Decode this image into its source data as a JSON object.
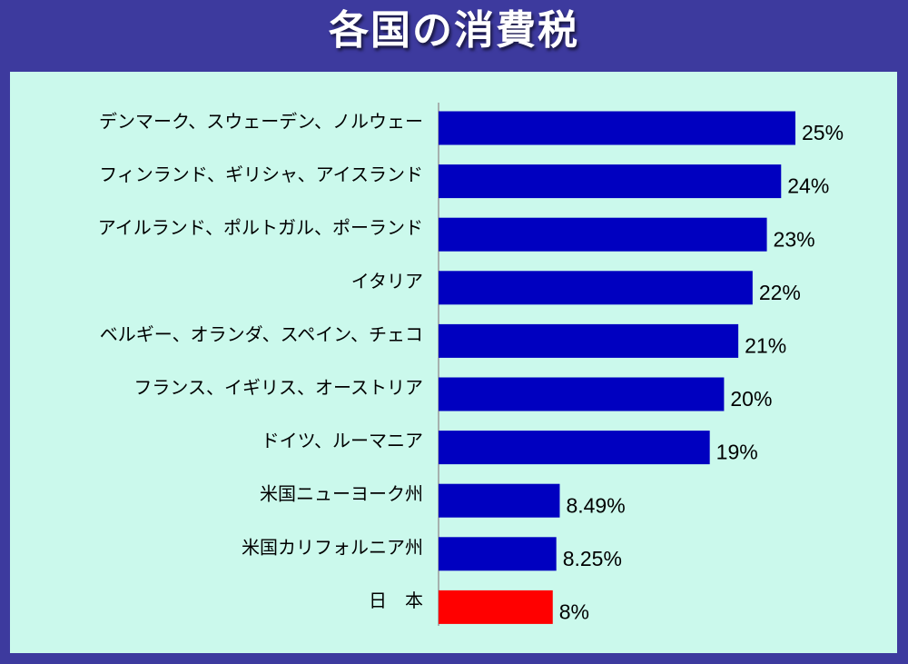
{
  "title": "各国の消費税",
  "colors": {
    "background": "#3d3a9e",
    "panel": "#cbf9ec",
    "bar": "#0000c0",
    "highlight": "#ff0000",
    "axis": "#999999"
  },
  "chart_data": {
    "type": "bar",
    "orientation": "horizontal",
    "title": "各国の消費税",
    "xlabel": "",
    "ylabel": "",
    "xlim": [
      0,
      25
    ],
    "grid": false,
    "legend": "none",
    "categories": [
      "デンマーク、スウェーデン、ノルウェー",
      "フィンランド、ギリシャ、アイスランド",
      "アイルランド、ポルトガル、ポーランド",
      "イタリア",
      "ベルギー、オランダ、スペイン、チェコ",
      "フランス、イギリス、オーストリア",
      "ドイツ、ルーマニア",
      "米国ニューヨーク州",
      "米国カリフォルニア州",
      "日　本"
    ],
    "values": [
      25,
      24,
      23,
      22,
      21,
      20,
      19,
      8.49,
      8.25,
      8
    ],
    "value_labels": [
      "25%",
      "24%",
      "23%",
      "22%",
      "21%",
      "20%",
      "19%",
      "8.49%",
      "8.25%",
      "8%"
    ],
    "highlight_index": 9
  }
}
